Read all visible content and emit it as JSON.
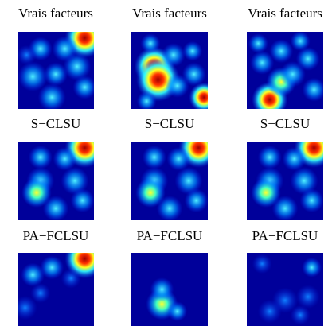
{
  "rows": [
    [
      "Vrais facteurs",
      "Vrais facteurs",
      "Vrais facteurs"
    ],
    [
      "S−CLSU",
      "S−CLSU",
      "S−CLSU"
    ],
    [
      "PA−FCLSU",
      "PA−FCLSU",
      "PA−FCLSU"
    ]
  ]
}
